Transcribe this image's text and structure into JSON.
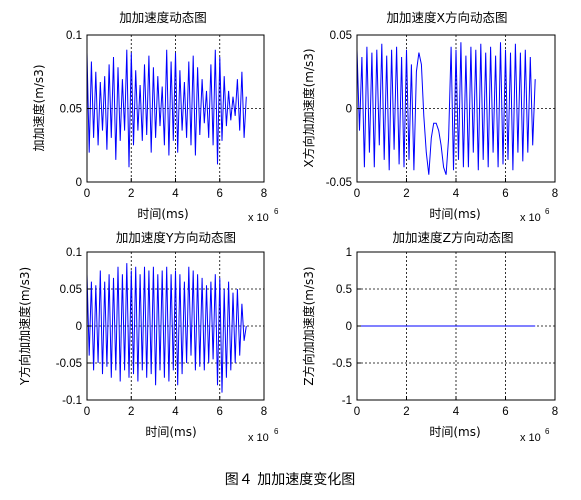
{
  "caption": "图４ 加加速度变化图",
  "chart_data": [
    {
      "type": "line",
      "title": "加加速度动态图",
      "xlabel": "时间(ms)",
      "ylabel": "加加速度(m/s3)",
      "x_multiplier": "x 10",
      "x_exponent": "6",
      "xlim": [
        0,
        8
      ],
      "ylim": [
        0,
        0.1
      ],
      "xticks": [
        0,
        2,
        4,
        6,
        8
      ],
      "yticks": [
        0,
        0.05,
        0.1
      ],
      "xtick_labels": [
        "0",
        "2",
        "4",
        "6",
        "8"
      ],
      "ytick_labels": [
        "0",
        "0.05",
        "0.1"
      ],
      "grid": true,
      "line_color": "#0000ff",
      "series": [
        {
          "x": [
            0,
            0.1,
            0.2,
            0.3,
            0.4,
            0.5,
            0.6,
            0.7,
            0.8,
            0.9,
            1.0,
            1.1,
            1.2,
            1.3,
            1.4,
            1.5,
            1.6,
            1.7,
            1.8,
            1.9,
            2.0,
            2.1,
            2.2,
            2.3,
            2.4,
            2.5,
            2.6,
            2.7,
            2.8,
            2.9,
            3.0,
            3.1,
            3.2,
            3.3,
            3.4,
            3.5,
            3.6,
            3.7,
            3.8,
            3.9,
            4.0,
            4.1,
            4.2,
            4.3,
            4.4,
            4.5,
            4.6,
            4.7,
            4.8,
            4.9,
            5.0,
            5.1,
            5.2,
            5.3,
            5.4,
            5.5,
            5.6,
            5.7,
            5.8,
            5.9,
            6.0,
            6.1,
            6.2,
            6.3,
            6.4,
            6.5,
            6.6,
            6.7,
            6.8,
            6.9,
            7.0,
            7.1,
            7.2
          ],
          "y": [
            0.088,
            0.02,
            0.082,
            0.03,
            0.075,
            0.025,
            0.068,
            0.035,
            0.072,
            0.022,
            0.08,
            0.03,
            0.085,
            0.015,
            0.078,
            0.028,
            0.07,
            0.035,
            0.09,
            0.01,
            0.088,
            0.025,
            0.076,
            0.035,
            0.066,
            0.028,
            0.08,
            0.032,
            0.086,
            0.02,
            0.078,
            0.03,
            0.072,
            0.038,
            0.065,
            0.025,
            0.09,
            0.018,
            0.082,
            0.028,
            0.088,
            0.02,
            0.076,
            0.035,
            0.068,
            0.03,
            0.082,
            0.025,
            0.086,
            0.018,
            0.078,
            0.032,
            0.07,
            0.04,
            0.062,
            0.03,
            0.08,
            0.025,
            0.09,
            0.012,
            0.085,
            0.028,
            0.072,
            0.038,
            0.062,
            0.042,
            0.058,
            0.045,
            0.07,
            0.035,
            0.075,
            0.03,
            0.058
          ]
        }
      ]
    },
    {
      "type": "line",
      "title": "加加速度X方向动态图",
      "xlabel": "时间(ms)",
      "ylabel": "X方向加加速度(m/s3)",
      "x_multiplier": "x 10",
      "x_exponent": "6",
      "xlim": [
        0,
        8
      ],
      "ylim": [
        -0.05,
        0.05
      ],
      "xticks": [
        0,
        2,
        4,
        6,
        8
      ],
      "yticks": [
        -0.05,
        0,
        0.05
      ],
      "xtick_labels": [
        "0",
        "2",
        "4",
        "6",
        "8"
      ],
      "ytick_labels": [
        "-0.05",
        "0",
        "0.05"
      ],
      "grid": true,
      "line_color": "#0000ff",
      "series": [
        {
          "x": [
            0,
            0.1,
            0.2,
            0.3,
            0.4,
            0.5,
            0.6,
            0.7,
            0.8,
            0.9,
            1.0,
            1.1,
            1.2,
            1.3,
            1.4,
            1.5,
            1.6,
            1.7,
            1.8,
            1.9,
            2.0,
            2.1,
            2.2,
            2.3,
            2.4,
            2.5,
            2.6,
            2.7,
            2.8,
            2.9,
            3.0,
            3.1,
            3.2,
            3.3,
            3.4,
            3.5,
            3.6,
            3.7,
            3.8,
            3.9,
            4.0,
            4.1,
            4.2,
            4.3,
            4.4,
            4.5,
            4.6,
            4.7,
            4.8,
            4.9,
            5.0,
            5.1,
            5.2,
            5.3,
            5.4,
            5.5,
            5.6,
            5.7,
            5.8,
            5.9,
            6.0,
            6.1,
            6.2,
            6.3,
            6.4,
            6.5,
            6.6,
            6.7,
            6.8,
            6.9,
            7.0,
            7.1,
            7.2
          ],
          "y": [
            0.04,
            -0.015,
            0.035,
            -0.04,
            0.042,
            -0.03,
            0.038,
            -0.04,
            0.04,
            -0.025,
            0.044,
            -0.035,
            0.036,
            -0.042,
            0.04,
            -0.028,
            0.042,
            -0.038,
            0.035,
            -0.04,
            0.04,
            -0.035,
            0.03,
            -0.042,
            0.025,
            0.038,
            0.03,
            -0.005,
            -0.03,
            -0.045,
            -0.02,
            -0.01,
            -0.01,
            -0.015,
            -0.025,
            -0.04,
            -0.045,
            -0.02,
            0.042,
            -0.042,
            0.04,
            -0.035,
            0.045,
            -0.04,
            0.036,
            -0.04,
            0.042,
            -0.03,
            0.04,
            -0.042,
            0.044,
            -0.035,
            0.038,
            -0.04,
            0.042,
            -0.03,
            0.036,
            -0.04,
            0.045,
            -0.038,
            0.04,
            -0.035,
            0.038,
            -0.042,
            0.044,
            -0.03,
            0.038,
            -0.036,
            0.04,
            -0.03,
            0.035,
            -0.025,
            0.02
          ]
        }
      ]
    },
    {
      "type": "line",
      "title": "加加速度Y方向动态图",
      "xlabel": "时间(ms)",
      "ylabel": "Y方向加加速度(m/s3)",
      "x_multiplier": "x 10",
      "x_exponent": "6",
      "xlim": [
        0,
        8
      ],
      "ylim": [
        -0.1,
        0.1
      ],
      "xticks": [
        0,
        2,
        4,
        6,
        8
      ],
      "yticks": [
        -0.1,
        -0.05,
        0,
        0.05,
        0.1
      ],
      "xtick_labels": [
        "0",
        "2",
        "4",
        "6",
        "8"
      ],
      "ytick_labels": [
        "-0.1",
        "-0.05",
        "0",
        "0.05",
        "0.1"
      ],
      "grid": true,
      "line_color": "#0000ff",
      "series": [
        {
          "x": [
            0,
            0.1,
            0.2,
            0.3,
            0.4,
            0.5,
            0.6,
            0.7,
            0.8,
            0.9,
            1.0,
            1.1,
            1.2,
            1.3,
            1.4,
            1.5,
            1.6,
            1.7,
            1.8,
            1.9,
            2.0,
            2.1,
            2.2,
            2.3,
            2.4,
            2.5,
            2.6,
            2.7,
            2.8,
            2.9,
            3.0,
            3.1,
            3.2,
            3.3,
            3.4,
            3.5,
            3.6,
            3.7,
            3.8,
            3.9,
            4.0,
            4.1,
            4.2,
            4.3,
            4.4,
            4.5,
            4.6,
            4.7,
            4.8,
            4.9,
            5.0,
            5.1,
            5.2,
            5.3,
            5.4,
            5.5,
            5.6,
            5.7,
            5.8,
            5.9,
            6.0,
            6.1,
            6.2,
            6.3,
            6.4,
            6.5,
            6.6,
            6.7,
            6.8,
            6.9,
            7.0,
            7.1,
            7.2
          ],
          "y": [
            0.07,
            -0.04,
            0.06,
            -0.06,
            0.055,
            -0.05,
            0.075,
            -0.065,
            0.06,
            -0.055,
            0.07,
            -0.07,
            0.065,
            -0.06,
            0.08,
            -0.075,
            0.07,
            -0.06,
            0.085,
            -0.07,
            0.075,
            -0.065,
            0.08,
            -0.075,
            0.07,
            -0.06,
            0.08,
            -0.07,
            0.075,
            -0.065,
            0.08,
            -0.08,
            0.07,
            -0.06,
            0.075,
            -0.07,
            0.08,
            -0.075,
            0.07,
            -0.06,
            0.075,
            -0.08,
            0.07,
            -0.065,
            0.06,
            -0.05,
            0.08,
            -0.04,
            0.075,
            -0.06,
            0.07,
            -0.055,
            0.065,
            -0.06,
            0.055,
            -0.05,
            0.06,
            -0.045,
            0.07,
            -0.08,
            0.065,
            -0.09,
            0.05,
            -0.07,
            0.06,
            -0.06,
            0.045,
            -0.05,
            0.05,
            -0.04,
            0.03,
            -0.02,
            0.0
          ]
        }
      ]
    },
    {
      "type": "line",
      "title": "加加速度Z方向动态图",
      "xlabel": "时间(ms)",
      "ylabel": "Z方向加加速度(m/s3)",
      "x_multiplier": "x 10",
      "x_exponent": "6",
      "xlim": [
        0,
        8
      ],
      "ylim": [
        -1,
        1
      ],
      "xticks": [
        0,
        2,
        4,
        6,
        8
      ],
      "yticks": [
        -1,
        -0.5,
        0,
        0.5,
        1
      ],
      "xtick_labels": [
        "0",
        "2",
        "4",
        "6",
        "8"
      ],
      "ytick_labels": [
        "-1",
        "-0.5",
        "0",
        "0.5",
        "1"
      ],
      "grid": true,
      "line_color": "#0000ff",
      "series": [
        {
          "x": [
            0,
            7.2
          ],
          "y": [
            0,
            0
          ]
        }
      ]
    }
  ]
}
